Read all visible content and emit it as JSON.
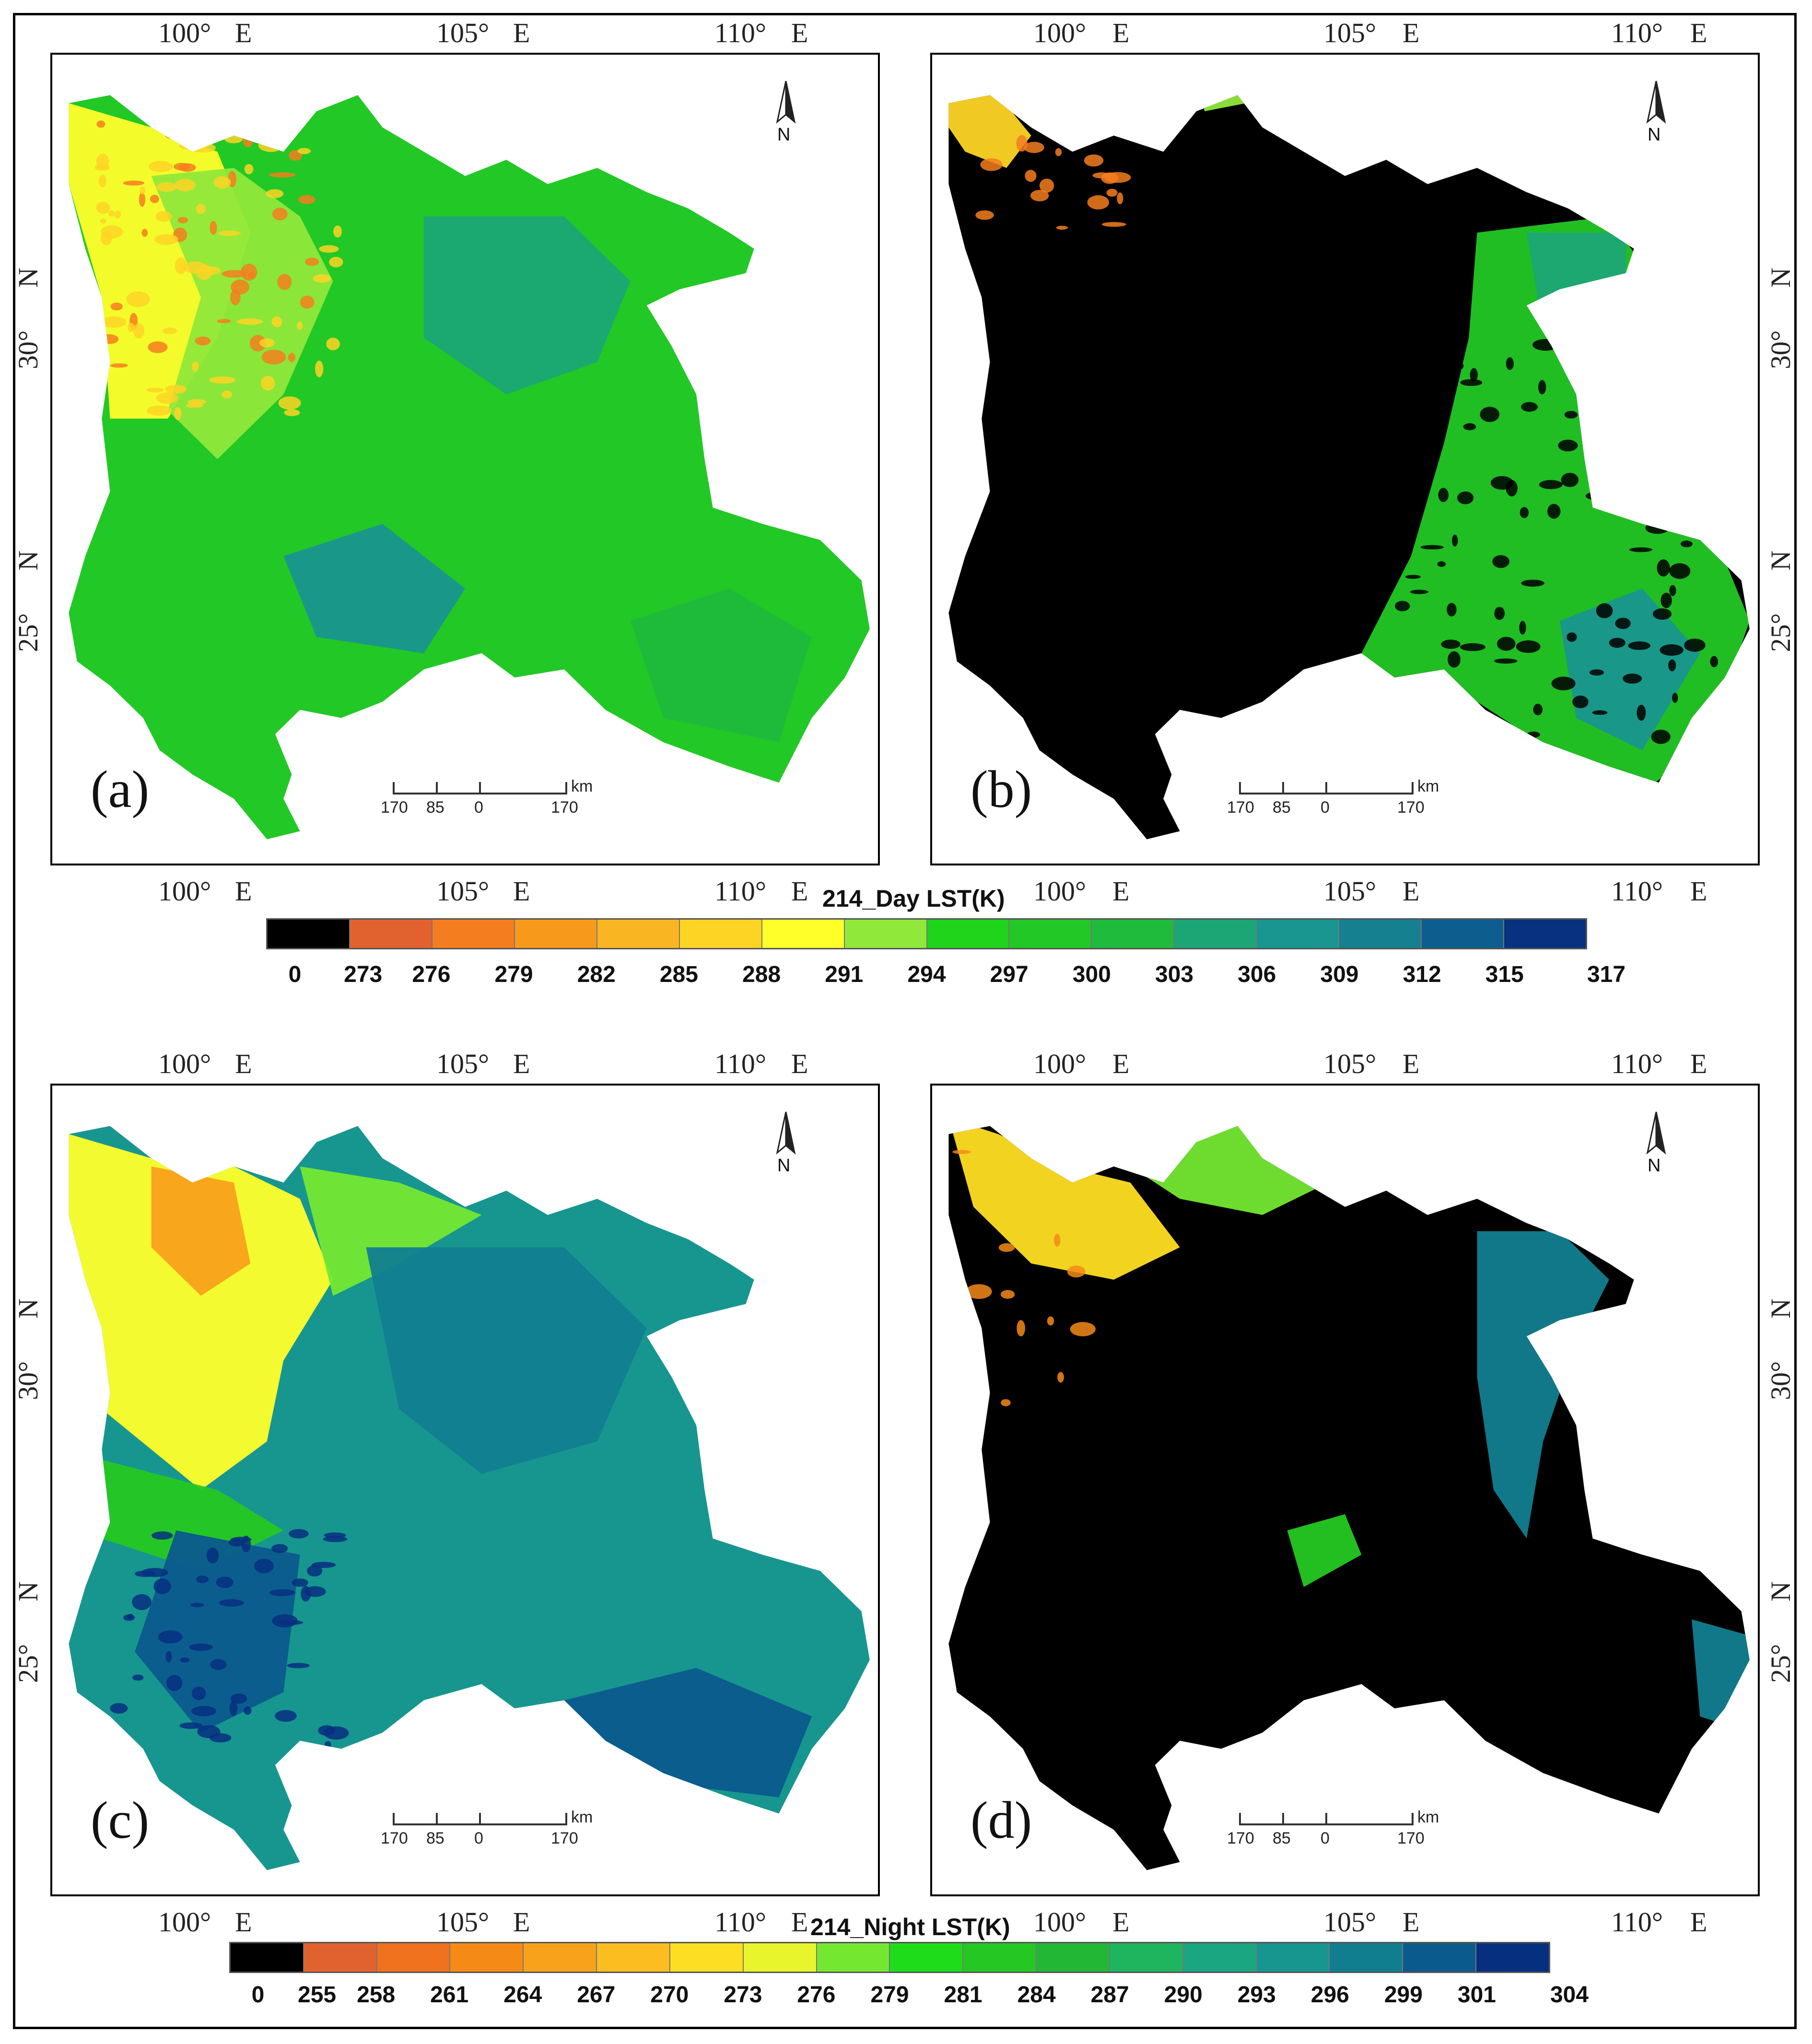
{
  "panels": [
    {
      "id": "a",
      "label": "(a)",
      "map_type": "day-model"
    },
    {
      "id": "b",
      "label": "(b)",
      "map_type": "day-obs"
    },
    {
      "id": "c",
      "label": "(c)",
      "map_type": "night-model"
    },
    {
      "id": "d",
      "label": "(d)",
      "map_type": "night-obs"
    }
  ],
  "axes": {
    "lon_labels": [
      "100°",
      "105°",
      "110°"
    ],
    "lon_suffix": "E",
    "lat_labels": [
      "30°",
      "25°"
    ],
    "lat_suffix": "N"
  },
  "scale_bar": {
    "ticks": [
      "170",
      "85",
      "0",
      "170"
    ],
    "unit": "km"
  },
  "north_arrow": {
    "label": "N"
  },
  "legends": [
    {
      "title": "214_Day LST(K)",
      "ticks": [
        "0",
        "273",
        "276",
        "279",
        "282",
        "285",
        "288",
        "291",
        "294",
        "297",
        "300",
        "303",
        "306",
        "309",
        "312",
        "315",
        "317"
      ],
      "colors": [
        "#000000",
        "#e2622f",
        "#f47e1f",
        "#f79a1c",
        "#f9b622",
        "#fdd424",
        "#ffff2a",
        "#90e83a",
        "#1fd41b",
        "#22c825",
        "#1fbb3c",
        "#1ca675",
        "#19968f",
        "#158090",
        "#0d5e8e",
        "#08317f"
      ]
    },
    {
      "title": "214_Night LST(K)",
      "ticks": [
        "0",
        "255",
        "258",
        "261",
        "264",
        "267",
        "270",
        "273",
        "276",
        "279",
        "281",
        "284",
        "287",
        "290",
        "293",
        "296",
        "299",
        "301",
        "304"
      ],
      "colors": [
        "#000000",
        "#e2622f",
        "#f0711e",
        "#f58a17",
        "#f8a21b",
        "#fbbd20",
        "#fede22",
        "#e8f52c",
        "#74e831",
        "#1fdc1b",
        "#25c822",
        "#22b836",
        "#1fb55e",
        "#1aa680",
        "#17968f",
        "#117e90",
        "#0b5a8d",
        "#072f80"
      ]
    }
  ]
}
